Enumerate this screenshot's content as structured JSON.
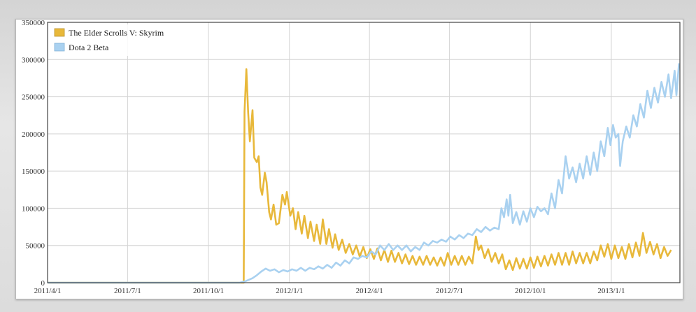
{
  "chart_data": {
    "type": "line",
    "title": "",
    "xlabel": "",
    "ylabel": "",
    "ylim": [
      0,
      350000
    ],
    "y_ticks": [
      "0",
      "50000",
      "100000",
      "150000",
      "200000",
      "250000",
      "300000",
      "350000"
    ],
    "x_ticks": [
      "2011/4/1",
      "2011/7/1",
      "2011/10/1",
      "2012/1/1",
      "2012/4/1",
      "2012/7/1",
      "2012/10/1",
      "2013/1/1"
    ],
    "xlim": [
      "2011-04-01",
      "2013-03-20"
    ],
    "grid": true,
    "legend_position": "top-left",
    "series": [
      {
        "name": "The Elder Scrolls V: Skyrim",
        "color": "#e8b83a",
        "points": [
          [
            "2011-04-01",
            0
          ],
          [
            "2011-11-10",
            0
          ],
          [
            "2011-11-11",
            230000
          ],
          [
            "2011-11-13",
            287000
          ],
          [
            "2011-11-15",
            230000
          ],
          [
            "2011-11-17",
            190000
          ],
          [
            "2011-11-20",
            232000
          ],
          [
            "2011-11-22",
            168000
          ],
          [
            "2011-11-25",
            162000
          ],
          [
            "2011-11-27",
            170000
          ],
          [
            "2011-11-29",
            128000
          ],
          [
            "2011-12-01",
            118000
          ],
          [
            "2011-12-04",
            148000
          ],
          [
            "2011-12-06",
            135000
          ],
          [
            "2011-12-09",
            95000
          ],
          [
            "2011-12-11",
            85000
          ],
          [
            "2011-12-14",
            105000
          ],
          [
            "2011-12-17",
            78000
          ],
          [
            "2011-12-20",
            80000
          ],
          [
            "2011-12-24",
            118000
          ],
          [
            "2011-12-27",
            105000
          ],
          [
            "2011-12-29",
            122000
          ],
          [
            "2012-01-02",
            90000
          ],
          [
            "2012-01-05",
            100000
          ],
          [
            "2012-01-08",
            72000
          ],
          [
            "2012-01-11",
            95000
          ],
          [
            "2012-01-15",
            66000
          ],
          [
            "2012-01-18",
            90000
          ],
          [
            "2012-01-22",
            60000
          ],
          [
            "2012-01-25",
            82000
          ],
          [
            "2012-01-29",
            56000
          ],
          [
            "2012-02-01",
            78000
          ],
          [
            "2012-02-05",
            52000
          ],
          [
            "2012-02-08",
            85000
          ],
          [
            "2012-02-12",
            52000
          ],
          [
            "2012-02-15",
            72000
          ],
          [
            "2012-02-19",
            47000
          ],
          [
            "2012-02-22",
            65000
          ],
          [
            "2012-02-26",
            44000
          ],
          [
            "2012-03-01",
            58000
          ],
          [
            "2012-03-05",
            40000
          ],
          [
            "2012-03-09",
            52000
          ],
          [
            "2012-03-13",
            38000
          ],
          [
            "2012-03-17",
            50000
          ],
          [
            "2012-03-21",
            35000
          ],
          [
            "2012-03-25",
            48000
          ],
          [
            "2012-03-29",
            33000
          ],
          [
            "2012-04-02",
            45000
          ],
          [
            "2012-04-06",
            32000
          ],
          [
            "2012-04-10",
            46000
          ],
          [
            "2012-04-14",
            30000
          ],
          [
            "2012-04-18",
            44000
          ],
          [
            "2012-04-22",
            28000
          ],
          [
            "2012-04-26",
            43000
          ],
          [
            "2012-04-30",
            28000
          ],
          [
            "2012-05-04",
            40000
          ],
          [
            "2012-05-08",
            26000
          ],
          [
            "2012-05-12",
            38000
          ],
          [
            "2012-05-16",
            25000
          ],
          [
            "2012-05-20",
            36000
          ],
          [
            "2012-05-24",
            24000
          ],
          [
            "2012-05-28",
            35000
          ],
          [
            "2012-06-01",
            24000
          ],
          [
            "2012-06-05",
            36000
          ],
          [
            "2012-06-09",
            24000
          ],
          [
            "2012-06-13",
            34000
          ],
          [
            "2012-06-17",
            23000
          ],
          [
            "2012-06-21",
            34000
          ],
          [
            "2012-06-25",
            23000
          ],
          [
            "2012-06-29",
            40000
          ],
          [
            "2012-07-03",
            24000
          ],
          [
            "2012-07-07",
            36000
          ],
          [
            "2012-07-11",
            24000
          ],
          [
            "2012-07-15",
            36000
          ],
          [
            "2012-07-19",
            24000
          ],
          [
            "2012-07-23",
            35000
          ],
          [
            "2012-07-27",
            26000
          ],
          [
            "2012-07-31",
            62000
          ],
          [
            "2012-08-03",
            44000
          ],
          [
            "2012-08-06",
            50000
          ],
          [
            "2012-08-10",
            33000
          ],
          [
            "2012-08-14",
            45000
          ],
          [
            "2012-08-18",
            28000
          ],
          [
            "2012-08-22",
            40000
          ],
          [
            "2012-08-26",
            26000
          ],
          [
            "2012-08-30",
            38000
          ],
          [
            "2012-09-03",
            18000
          ],
          [
            "2012-09-07",
            30000
          ],
          [
            "2012-09-11",
            17000
          ],
          [
            "2012-09-15",
            33000
          ],
          [
            "2012-09-19",
            19000
          ],
          [
            "2012-09-23",
            32000
          ],
          [
            "2012-09-27",
            19000
          ],
          [
            "2012-10-01",
            34000
          ],
          [
            "2012-10-05",
            20000
          ],
          [
            "2012-10-09",
            35000
          ],
          [
            "2012-10-13",
            22000
          ],
          [
            "2012-10-17",
            36000
          ],
          [
            "2012-10-21",
            23000
          ],
          [
            "2012-10-25",
            38000
          ],
          [
            "2012-10-29",
            24000
          ],
          [
            "2012-11-02",
            40000
          ],
          [
            "2012-11-06",
            24000
          ],
          [
            "2012-11-10",
            40000
          ],
          [
            "2012-11-14",
            24000
          ],
          [
            "2012-11-18",
            42000
          ],
          [
            "2012-11-22",
            26000
          ],
          [
            "2012-11-26",
            40000
          ],
          [
            "2012-11-30",
            26000
          ],
          [
            "2012-12-04",
            40000
          ],
          [
            "2012-12-08",
            26000
          ],
          [
            "2012-12-12",
            42000
          ],
          [
            "2012-12-16",
            30000
          ],
          [
            "2012-12-20",
            50000
          ],
          [
            "2012-12-24",
            35000
          ],
          [
            "2012-12-28",
            52000
          ],
          [
            "2013-01-01",
            32000
          ],
          [
            "2013-01-05",
            50000
          ],
          [
            "2013-01-09",
            33000
          ],
          [
            "2013-01-13",
            48000
          ],
          [
            "2013-01-17",
            32000
          ],
          [
            "2013-01-21",
            52000
          ],
          [
            "2013-01-25",
            34000
          ],
          [
            "2013-01-29",
            54000
          ],
          [
            "2013-02-02",
            36000
          ],
          [
            "2013-02-06",
            67000
          ],
          [
            "2013-02-10",
            40000
          ],
          [
            "2013-02-14",
            55000
          ],
          [
            "2013-02-18",
            38000
          ],
          [
            "2013-02-22",
            52000
          ],
          [
            "2013-02-26",
            33000
          ],
          [
            "2013-03-02",
            48000
          ],
          [
            "2013-03-06",
            36000
          ],
          [
            "2013-03-10",
            44000
          ]
        ]
      },
      {
        "name": "Dota 2 Beta",
        "color": "#a9d1f0",
        "points": [
          [
            "2011-04-01",
            0
          ],
          [
            "2011-11-05",
            0
          ],
          [
            "2011-11-12",
            2000
          ],
          [
            "2011-11-20",
            6000
          ],
          [
            "2011-11-25",
            10000
          ],
          [
            "2011-11-30",
            15000
          ],
          [
            "2011-12-05",
            19000
          ],
          [
            "2011-12-10",
            16000
          ],
          [
            "2011-12-15",
            18000
          ],
          [
            "2011-12-20",
            14000
          ],
          [
            "2011-12-25",
            17000
          ],
          [
            "2011-12-30",
            15000
          ],
          [
            "2012-01-04",
            18000
          ],
          [
            "2012-01-09",
            16000
          ],
          [
            "2012-01-14",
            20000
          ],
          [
            "2012-01-19",
            16000
          ],
          [
            "2012-01-24",
            20000
          ],
          [
            "2012-01-29",
            18000
          ],
          [
            "2012-02-03",
            22000
          ],
          [
            "2012-02-08",
            19000
          ],
          [
            "2012-02-13",
            24000
          ],
          [
            "2012-02-18",
            20000
          ],
          [
            "2012-02-23",
            27000
          ],
          [
            "2012-02-28",
            23000
          ],
          [
            "2012-03-04",
            30000
          ],
          [
            "2012-03-09",
            26000
          ],
          [
            "2012-03-14",
            34000
          ],
          [
            "2012-03-19",
            32000
          ],
          [
            "2012-03-24",
            36000
          ],
          [
            "2012-03-29",
            34000
          ],
          [
            "2012-04-03",
            42000
          ],
          [
            "2012-04-08",
            38000
          ],
          [
            "2012-04-13",
            50000
          ],
          [
            "2012-04-18",
            44000
          ],
          [
            "2012-04-23",
            52000
          ],
          [
            "2012-04-28",
            44000
          ],
          [
            "2012-05-03",
            50000
          ],
          [
            "2012-05-08",
            44000
          ],
          [
            "2012-05-13",
            50000
          ],
          [
            "2012-05-18",
            42000
          ],
          [
            "2012-05-23",
            48000
          ],
          [
            "2012-05-28",
            44000
          ],
          [
            "2012-06-02",
            54000
          ],
          [
            "2012-06-07",
            50000
          ],
          [
            "2012-06-12",
            56000
          ],
          [
            "2012-06-17",
            54000
          ],
          [
            "2012-06-22",
            58000
          ],
          [
            "2012-06-27",
            55000
          ],
          [
            "2012-07-02",
            62000
          ],
          [
            "2012-07-07",
            58000
          ],
          [
            "2012-07-12",
            64000
          ],
          [
            "2012-07-17",
            60000
          ],
          [
            "2012-07-22",
            66000
          ],
          [
            "2012-07-27",
            64000
          ],
          [
            "2012-08-01",
            72000
          ],
          [
            "2012-08-06",
            68000
          ],
          [
            "2012-08-11",
            75000
          ],
          [
            "2012-08-16",
            70000
          ],
          [
            "2012-08-21",
            74000
          ],
          [
            "2012-08-26",
            72000
          ],
          [
            "2012-08-29",
            100000
          ],
          [
            "2012-09-01",
            88000
          ],
          [
            "2012-09-04",
            112000
          ],
          [
            "2012-09-06",
            90000
          ],
          [
            "2012-09-08",
            118000
          ],
          [
            "2012-09-11",
            80000
          ],
          [
            "2012-09-15",
            95000
          ],
          [
            "2012-09-19",
            78000
          ],
          [
            "2012-09-23",
            96000
          ],
          [
            "2012-09-27",
            82000
          ],
          [
            "2012-10-01",
            100000
          ],
          [
            "2012-10-05",
            88000
          ],
          [
            "2012-10-09",
            102000
          ],
          [
            "2012-10-13",
            96000
          ],
          [
            "2012-10-17",
            100000
          ],
          [
            "2012-10-21",
            92000
          ],
          [
            "2012-10-25",
            120000
          ],
          [
            "2012-10-29",
            100000
          ],
          [
            "2012-11-02",
            138000
          ],
          [
            "2012-11-06",
            120000
          ],
          [
            "2012-11-10",
            170000
          ],
          [
            "2012-11-14",
            140000
          ],
          [
            "2012-11-18",
            155000
          ],
          [
            "2012-11-22",
            135000
          ],
          [
            "2012-11-26",
            160000
          ],
          [
            "2012-11-30",
            140000
          ],
          [
            "2012-12-04",
            170000
          ],
          [
            "2012-12-08",
            145000
          ],
          [
            "2012-12-12",
            175000
          ],
          [
            "2012-12-16",
            150000
          ],
          [
            "2012-12-20",
            190000
          ],
          [
            "2012-12-24",
            170000
          ],
          [
            "2012-12-28",
            208000
          ],
          [
            "2012-12-31",
            185000
          ],
          [
            "2013-01-03",
            212000
          ],
          [
            "2013-01-06",
            195000
          ],
          [
            "2013-01-09",
            200000
          ],
          [
            "2013-01-11",
            157000
          ],
          [
            "2013-01-14",
            190000
          ],
          [
            "2013-01-18",
            210000
          ],
          [
            "2013-01-22",
            195000
          ],
          [
            "2013-01-26",
            225000
          ],
          [
            "2013-01-30",
            210000
          ],
          [
            "2013-02-03",
            240000
          ],
          [
            "2013-02-07",
            222000
          ],
          [
            "2013-02-11",
            258000
          ],
          [
            "2013-02-15",
            235000
          ],
          [
            "2013-02-19",
            262000
          ],
          [
            "2013-02-23",
            242000
          ],
          [
            "2013-02-27",
            270000
          ],
          [
            "2013-03-03",
            250000
          ],
          [
            "2013-03-07",
            280000
          ],
          [
            "2013-03-10",
            248000
          ],
          [
            "2013-03-14",
            285000
          ],
          [
            "2013-03-16",
            252000
          ],
          [
            "2013-03-19",
            295000
          ]
        ]
      }
    ]
  }
}
